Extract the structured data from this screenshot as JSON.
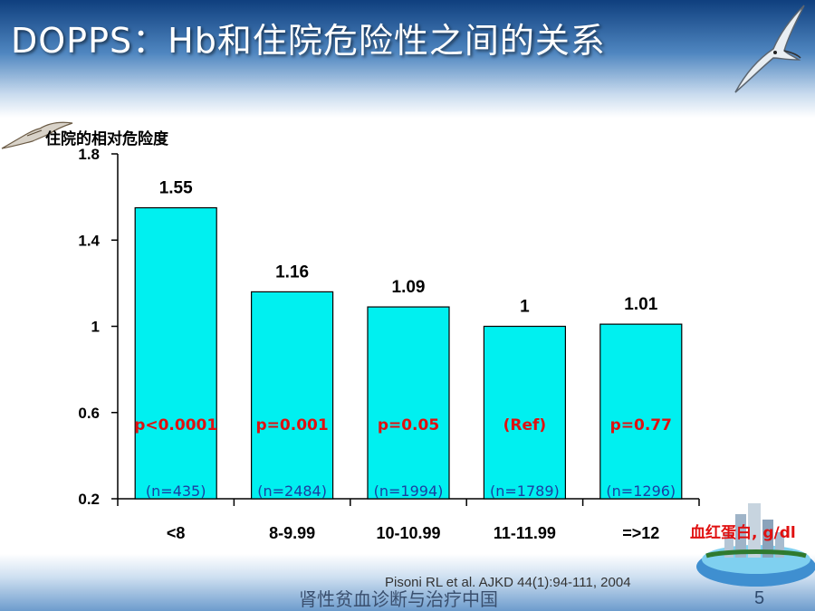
{
  "slide": {
    "title": "DOPPS：Hb和住院危险性之间的关系",
    "footer": "肾性贫血诊断与治疗中国",
    "page_number": "5",
    "citation": "Pisoni RL et al. AJKD 44(1):94-111, 2004"
  },
  "colors": {
    "bar_fill": "#00f0f0",
    "p_value_text": "#e01010",
    "n_text": "#1c3fa0",
    "title_band": "#1f5ea8"
  },
  "decor": {
    "top_right": "seagull-icon",
    "top_left_axis": "seagull-icon",
    "bottom_right": "globe-city-icon"
  },
  "chart_data": {
    "type": "bar",
    "ylabel": "住院的相对危险度",
    "xlabel": "血红蛋白, g/dl",
    "ylim": [
      0.2,
      1.8
    ],
    "yticks": [
      "0.2",
      "0.6",
      "1",
      "1.4",
      "1.8"
    ],
    "grid": false,
    "categories": [
      "<8",
      "8-9.99",
      "10-10.99",
      "11-11.99",
      "=>12"
    ],
    "values": [
      1.55,
      1.16,
      1.09,
      1,
      1.01
    ],
    "value_labels": [
      "1.55",
      "1.16",
      "1.09",
      "1",
      "1.01"
    ],
    "p_values": [
      "p<0.0001",
      "p=0.001",
      "p=0.05",
      "(Ref)",
      "p=0.77"
    ],
    "n_labels": [
      "(n=435)",
      "(n=2484)",
      "(n=1994)",
      "(n=1789)",
      "(n=1296)"
    ]
  }
}
